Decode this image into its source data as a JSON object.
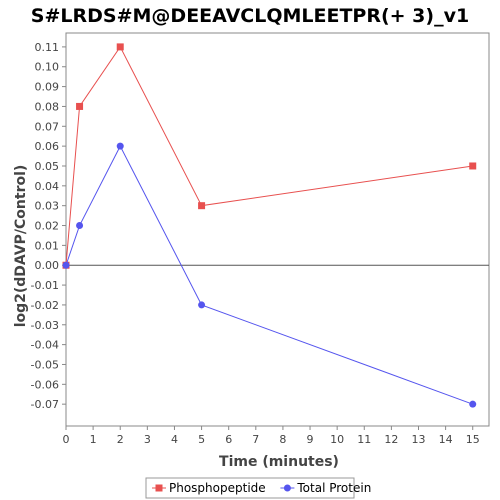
{
  "chart_data": {
    "type": "line",
    "title": "S#LRDS#M@DEEAVCLQMLEETPR(+ 3)_v1",
    "xlabel": "Time (minutes)",
    "ylabel": "log2(dDAVP/Control)",
    "xlim": [
      0,
      15.6
    ],
    "ylim": [
      -0.081,
      0.117
    ],
    "x_ticks": [
      0,
      1,
      2,
      3,
      4,
      5,
      6,
      7,
      8,
      9,
      10,
      11,
      12,
      13,
      14,
      15
    ],
    "y_ticks": [
      0.11,
      0.1,
      0.09,
      0.08,
      0.07,
      0.06,
      0.05,
      0.04,
      0.03,
      0.02,
      0.01,
      0.0,
      -0.01,
      -0.02,
      -0.03,
      -0.04,
      -0.05,
      -0.06,
      -0.07
    ],
    "grid": false,
    "zero_line": true,
    "legend_position": "bottom",
    "series": [
      {
        "name": "Phosphopeptide",
        "color": "#e8504f",
        "marker": "square",
        "x": [
          0,
          0.5,
          2,
          5,
          15
        ],
        "y": [
          0.0,
          0.08,
          0.11,
          0.03,
          0.05
        ]
      },
      {
        "name": "Total Protein",
        "color": "#5555ee",
        "marker": "circle",
        "x": [
          0,
          0.5,
          2,
          5,
          15
        ],
        "y": [
          0.0,
          0.02,
          0.06,
          -0.02,
          -0.07
        ]
      }
    ]
  }
}
